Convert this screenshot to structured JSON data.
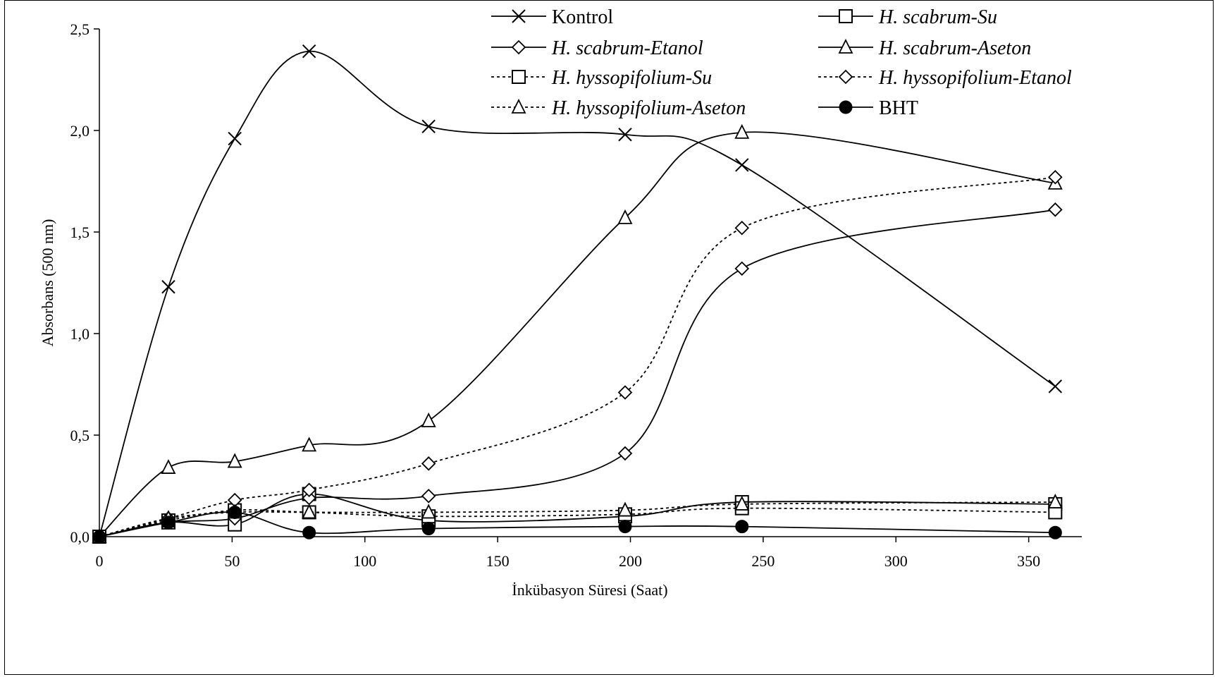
{
  "chart_data": {
    "type": "line",
    "xlabel": "İnkübasyon Süresi (Saat)",
    "ylabel": "Absorbans (500 nm)",
    "xlim": [
      0,
      370
    ],
    "ylim": [
      0,
      2.5
    ],
    "x_ticks": [
      "0",
      "50",
      "100",
      "150",
      "200",
      "250",
      "300",
      "350"
    ],
    "y_ticks": [
      "0,0",
      "0,5",
      "1,0",
      "1,5",
      "2,0",
      "2,5"
    ],
    "x": [
      0,
      26,
      51,
      79,
      124,
      198,
      242,
      360
    ],
    "grid": false,
    "legend_position": "top",
    "series": [
      {
        "name": "Kontrol",
        "marker": "x",
        "dash": "solid",
        "italic": false,
        "values": [
          0,
          1.23,
          1.96,
          2.39,
          2.02,
          1.98,
          1.83,
          0.74
        ]
      },
      {
        "name": "H. scabrum-Su",
        "marker": "square",
        "dash": "solid",
        "italic": true,
        "values": [
          0,
          0.07,
          0.06,
          0.21,
          0.08,
          0.1,
          0.17,
          0.16
        ]
      },
      {
        "name": "H. scabrum-Etanol",
        "marker": "diamond",
        "dash": "solid",
        "italic": true,
        "values": [
          0,
          0.07,
          0.09,
          0.19,
          0.2,
          0.41,
          1.32,
          1.61
        ]
      },
      {
        "name": "H. scabrum-Aseton",
        "marker": "triangle",
        "dash": "solid",
        "italic": true,
        "values": [
          0,
          0.34,
          0.37,
          0.45,
          0.57,
          1.57,
          1.99,
          1.74
        ]
      },
      {
        "name": "H. hyssopifolium-Su",
        "marker": "square",
        "dash": "dotted",
        "italic": true,
        "values": [
          0,
          0.08,
          0.13,
          0.12,
          0.1,
          0.11,
          0.14,
          0.12
        ]
      },
      {
        "name": "H. hyssopifolium-Etanol",
        "marker": "diamond",
        "dash": "dotted",
        "italic": true,
        "values": [
          0,
          0.09,
          0.18,
          0.23,
          0.36,
          0.71,
          1.52,
          1.77
        ]
      },
      {
        "name": "H. hyssopifolium-Aseton",
        "marker": "triangle",
        "dash": "dotted",
        "italic": true,
        "values": [
          0,
          0.09,
          0.12,
          0.12,
          0.12,
          0.13,
          0.16,
          0.17
        ]
      },
      {
        "name": "BHT",
        "marker": "circle",
        "dash": "solid",
        "italic": false,
        "values": [
          0,
          0.07,
          0.12,
          0.02,
          0.04,
          0.05,
          0.05,
          0.02
        ]
      }
    ]
  }
}
